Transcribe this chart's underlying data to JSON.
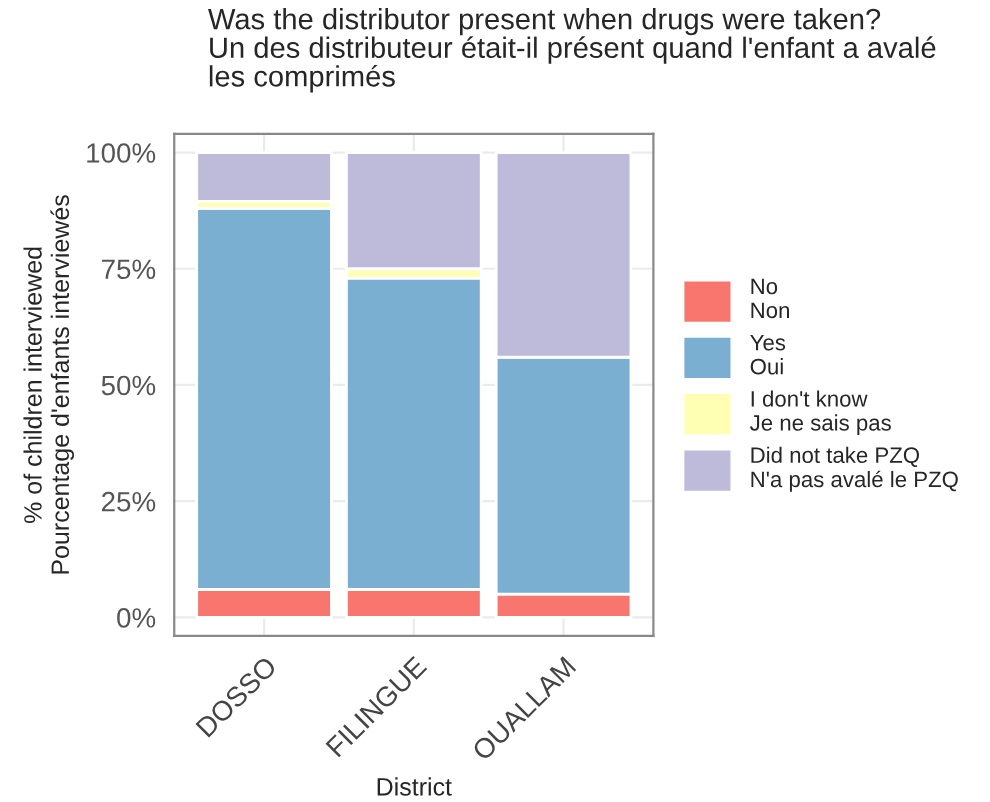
{
  "chart_data": {
    "type": "bar",
    "title": "Was the distributor present when drugs were taken?\nUn des distributeur était-il présent quand l'enfant a avalé\nles comprimés",
    "xlabel": "District",
    "ylabel": "% of children interviewed\nPourcentage d'enfants interviewés",
    "categories": [
      "DOSSO",
      "FILINGUE",
      "OUALLAM"
    ],
    "stacked": true,
    "series": [
      {
        "name": "No\nNon",
        "color": "#f8766d",
        "values": [
          6,
          6,
          5
        ]
      },
      {
        "name": "Yes\nOui",
        "color": "#7bafd2",
        "values": [
          82,
          67,
          51
        ]
      },
      {
        "name": "I don't know\nJe ne sais pas",
        "color": "#ffffb3",
        "values": [
          1.5,
          2,
          0
        ]
      },
      {
        "name": "Did not take PZQ\nN'a pas avalé le PZQ",
        "color": "#bebada",
        "values": [
          10.5,
          25,
          44
        ]
      }
    ],
    "ylim": [
      -4,
      104
    ],
    "yticks": [
      {
        "value": 0,
        "label": "0%"
      },
      {
        "value": 25,
        "label": "25%"
      },
      {
        "value": 50,
        "label": "50%"
      },
      {
        "value": 75,
        "label": "75%"
      },
      {
        "value": 100,
        "label": "100%"
      }
    ],
    "grid": true,
    "legend": "right"
  }
}
